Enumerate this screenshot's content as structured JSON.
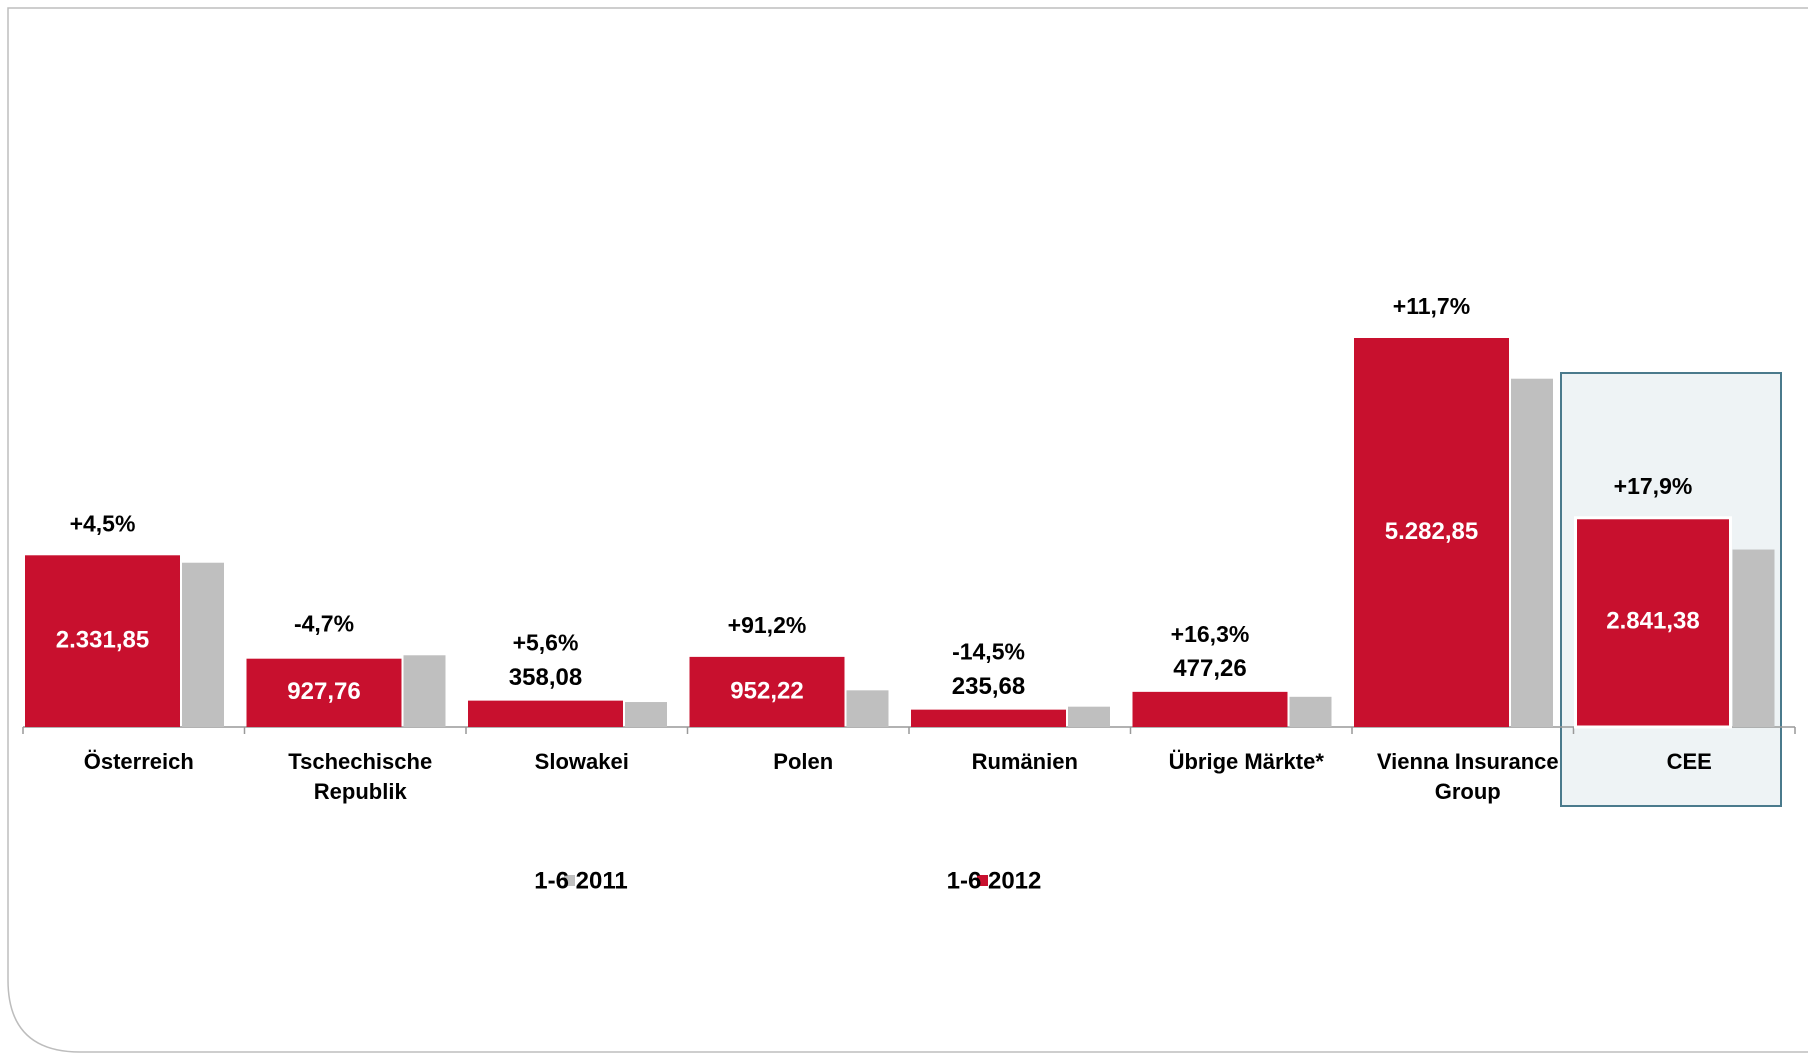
{
  "chart_data": {
    "type": "bar",
    "categories": [
      "Österreich",
      "Tschechische Republik",
      "Slowakei",
      "Polen",
      "Rumänien",
      "Übrige Märkte*",
      "Vienna Insurance Group",
      "CEE"
    ],
    "series": [
      {
        "name": "1-6 2011",
        "color": "#bfbfbf",
        "values": [
          2231,
          974,
          339,
          498,
          276,
          410,
          4730,
          2410
        ]
      },
      {
        "name": "1-6 2012",
        "color": "#c8102e",
        "values": [
          2331.85,
          927.76,
          358.08,
          952.22,
          235.68,
          477.26,
          5282.85,
          2841.38
        ],
        "value_labels": [
          "2.331,85",
          "927,76",
          "358,08",
          "952,22",
          "235,68",
          "477,26",
          "5.282,85",
          "2.841,38"
        ]
      }
    ],
    "annotations": [
      "+4,5%",
      "-4,7%",
      "+5,6%",
      "+91,2%",
      "-14,5%",
      "+16,3%",
      "+11,7%",
      "+17,9%"
    ]
  }
}
